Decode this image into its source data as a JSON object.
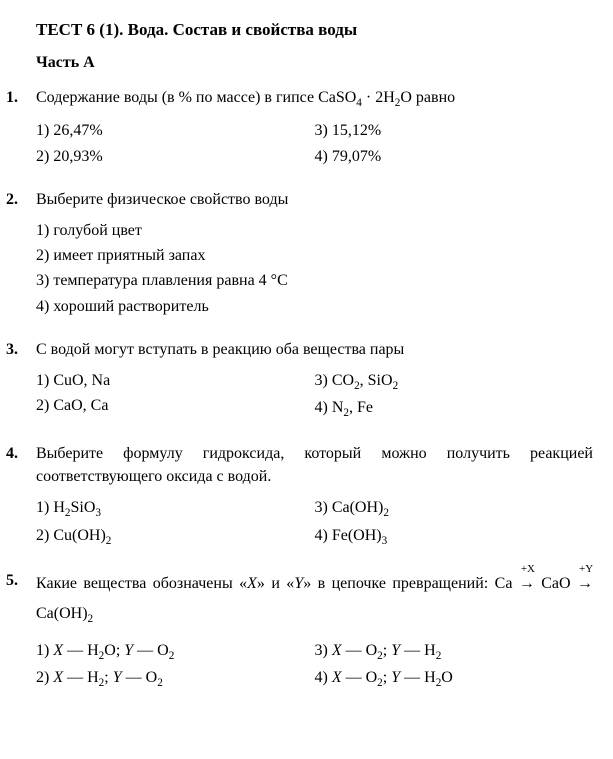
{
  "title": "ТЕСТ 6 (1). Вода. Состав и свойства воды",
  "part_label": "Часть А",
  "q1": {
    "num": "1.",
    "stem_a": "Содержание воды (в % по массе) в гипсе CaSO",
    "stem_b": " · 2H",
    "stem_c": "O равно",
    "o1": "1) 26,47%",
    "o2": "2) 20,93%",
    "o3": "3) 15,12%",
    "o4": "4) 79,07%"
  },
  "q2": {
    "num": "2.",
    "stem": "Выберите физическое свойство воды",
    "o1": "1) голубой цвет",
    "o2": "2) имеет приятный запах",
    "o3": "3) температура плавления равна 4 °С",
    "o4": "4) хороший растворитель"
  },
  "q3": {
    "num": "3.",
    "stem": "С водой могут вступать в реакцию оба вещества пары",
    "o1": "1) CuO, Na",
    "o2": "2) CaO, Ca",
    "o3a": "3) CO",
    "o3b": ", SiO",
    "o4a": "4) N",
    "o4b": ", Fe"
  },
  "q4": {
    "num": "4.",
    "stem": "Выберите формулу гидроксида, который можно получить реакцией соответствующего оксида с водой.",
    "o1a": "1) H",
    "o1b": "SiO",
    "o2": "2) Cu(OH)",
    "o3": "3) Ca(OH)",
    "o4": "4) Fe(OH)"
  },
  "q5": {
    "num": "5.",
    "stem_a": "Какие вещества обозначены «",
    "stem_x": "X",
    "stem_b": "» и «",
    "stem_y": "Y",
    "stem_c": "» в цепочке превращений: Ca ",
    "stem_d": " CaO ",
    "stem_e": " Ca(OH)",
    "ax_X": "+X",
    "ax_Y": "+Y",
    "arrow": "→",
    "o1a": "1) ",
    "o1b": " — H",
    "o1c": "O; ",
    "o1d": " — O",
    "o2a": "2) ",
    "o2b": " — H",
    "o2c": "; ",
    "o2d": " — O",
    "o3a": "3) ",
    "o3b": " — O",
    "o3c": "; ",
    "o3d": " — H",
    "o4a": "4) ",
    "o4b": " — O",
    "o4c": "; ",
    "o4d": " — H",
    "o4e": "O",
    "X": "X",
    "Y": "Y"
  }
}
